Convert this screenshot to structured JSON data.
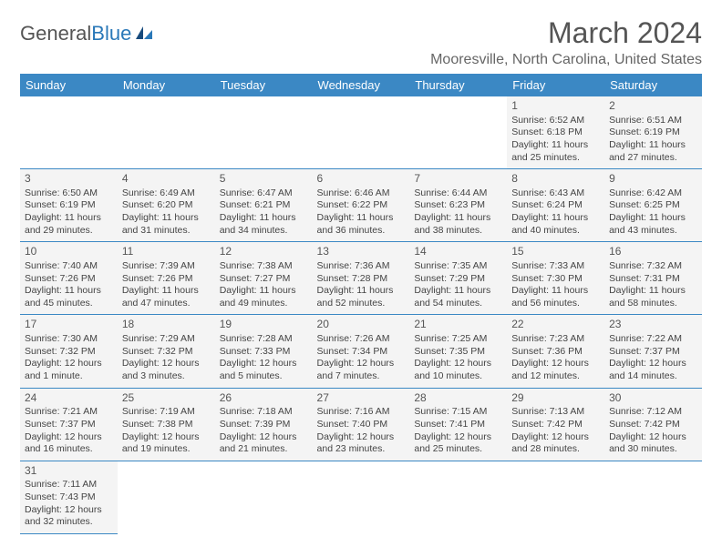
{
  "logo": {
    "text1": "General",
    "text2": "Blue"
  },
  "title": "March 2024",
  "location": "Mooresville, North Carolina, United States",
  "colors": {
    "header_bg": "#3b88c4",
    "header_text": "#ffffff",
    "cell_bg": "#f4f4f4",
    "border": "#3b88c4",
    "title_color": "#555555",
    "body_text": "#444444"
  },
  "day_headers": [
    "Sunday",
    "Monday",
    "Tuesday",
    "Wednesday",
    "Thursday",
    "Friday",
    "Saturday"
  ],
  "weeks": [
    [
      null,
      null,
      null,
      null,
      null,
      {
        "n": "1",
        "sr": "Sunrise: 6:52 AM",
        "ss": "Sunset: 6:18 PM",
        "d1": "Daylight: 11 hours",
        "d2": "and 25 minutes."
      },
      {
        "n": "2",
        "sr": "Sunrise: 6:51 AM",
        "ss": "Sunset: 6:19 PM",
        "d1": "Daylight: 11 hours",
        "d2": "and 27 minutes."
      }
    ],
    [
      {
        "n": "3",
        "sr": "Sunrise: 6:50 AM",
        "ss": "Sunset: 6:19 PM",
        "d1": "Daylight: 11 hours",
        "d2": "and 29 minutes."
      },
      {
        "n": "4",
        "sr": "Sunrise: 6:49 AM",
        "ss": "Sunset: 6:20 PM",
        "d1": "Daylight: 11 hours",
        "d2": "and 31 minutes."
      },
      {
        "n": "5",
        "sr": "Sunrise: 6:47 AM",
        "ss": "Sunset: 6:21 PM",
        "d1": "Daylight: 11 hours",
        "d2": "and 34 minutes."
      },
      {
        "n": "6",
        "sr": "Sunrise: 6:46 AM",
        "ss": "Sunset: 6:22 PM",
        "d1": "Daylight: 11 hours",
        "d2": "and 36 minutes."
      },
      {
        "n": "7",
        "sr": "Sunrise: 6:44 AM",
        "ss": "Sunset: 6:23 PM",
        "d1": "Daylight: 11 hours",
        "d2": "and 38 minutes."
      },
      {
        "n": "8",
        "sr": "Sunrise: 6:43 AM",
        "ss": "Sunset: 6:24 PM",
        "d1": "Daylight: 11 hours",
        "d2": "and 40 minutes."
      },
      {
        "n": "9",
        "sr": "Sunrise: 6:42 AM",
        "ss": "Sunset: 6:25 PM",
        "d1": "Daylight: 11 hours",
        "d2": "and 43 minutes."
      }
    ],
    [
      {
        "n": "10",
        "sr": "Sunrise: 7:40 AM",
        "ss": "Sunset: 7:26 PM",
        "d1": "Daylight: 11 hours",
        "d2": "and 45 minutes."
      },
      {
        "n": "11",
        "sr": "Sunrise: 7:39 AM",
        "ss": "Sunset: 7:26 PM",
        "d1": "Daylight: 11 hours",
        "d2": "and 47 minutes."
      },
      {
        "n": "12",
        "sr": "Sunrise: 7:38 AM",
        "ss": "Sunset: 7:27 PM",
        "d1": "Daylight: 11 hours",
        "d2": "and 49 minutes."
      },
      {
        "n": "13",
        "sr": "Sunrise: 7:36 AM",
        "ss": "Sunset: 7:28 PM",
        "d1": "Daylight: 11 hours",
        "d2": "and 52 minutes."
      },
      {
        "n": "14",
        "sr": "Sunrise: 7:35 AM",
        "ss": "Sunset: 7:29 PM",
        "d1": "Daylight: 11 hours",
        "d2": "and 54 minutes."
      },
      {
        "n": "15",
        "sr": "Sunrise: 7:33 AM",
        "ss": "Sunset: 7:30 PM",
        "d1": "Daylight: 11 hours",
        "d2": "and 56 minutes."
      },
      {
        "n": "16",
        "sr": "Sunrise: 7:32 AM",
        "ss": "Sunset: 7:31 PM",
        "d1": "Daylight: 11 hours",
        "d2": "and 58 minutes."
      }
    ],
    [
      {
        "n": "17",
        "sr": "Sunrise: 7:30 AM",
        "ss": "Sunset: 7:32 PM",
        "d1": "Daylight: 12 hours",
        "d2": "and 1 minute."
      },
      {
        "n": "18",
        "sr": "Sunrise: 7:29 AM",
        "ss": "Sunset: 7:32 PM",
        "d1": "Daylight: 12 hours",
        "d2": "and 3 minutes."
      },
      {
        "n": "19",
        "sr": "Sunrise: 7:28 AM",
        "ss": "Sunset: 7:33 PM",
        "d1": "Daylight: 12 hours",
        "d2": "and 5 minutes."
      },
      {
        "n": "20",
        "sr": "Sunrise: 7:26 AM",
        "ss": "Sunset: 7:34 PM",
        "d1": "Daylight: 12 hours",
        "d2": "and 7 minutes."
      },
      {
        "n": "21",
        "sr": "Sunrise: 7:25 AM",
        "ss": "Sunset: 7:35 PM",
        "d1": "Daylight: 12 hours",
        "d2": "and 10 minutes."
      },
      {
        "n": "22",
        "sr": "Sunrise: 7:23 AM",
        "ss": "Sunset: 7:36 PM",
        "d1": "Daylight: 12 hours",
        "d2": "and 12 minutes."
      },
      {
        "n": "23",
        "sr": "Sunrise: 7:22 AM",
        "ss": "Sunset: 7:37 PM",
        "d1": "Daylight: 12 hours",
        "d2": "and 14 minutes."
      }
    ],
    [
      {
        "n": "24",
        "sr": "Sunrise: 7:21 AM",
        "ss": "Sunset: 7:37 PM",
        "d1": "Daylight: 12 hours",
        "d2": "and 16 minutes."
      },
      {
        "n": "25",
        "sr": "Sunrise: 7:19 AM",
        "ss": "Sunset: 7:38 PM",
        "d1": "Daylight: 12 hours",
        "d2": "and 19 minutes."
      },
      {
        "n": "26",
        "sr": "Sunrise: 7:18 AM",
        "ss": "Sunset: 7:39 PM",
        "d1": "Daylight: 12 hours",
        "d2": "and 21 minutes."
      },
      {
        "n": "27",
        "sr": "Sunrise: 7:16 AM",
        "ss": "Sunset: 7:40 PM",
        "d1": "Daylight: 12 hours",
        "d2": "and 23 minutes."
      },
      {
        "n": "28",
        "sr": "Sunrise: 7:15 AM",
        "ss": "Sunset: 7:41 PM",
        "d1": "Daylight: 12 hours",
        "d2": "and 25 minutes."
      },
      {
        "n": "29",
        "sr": "Sunrise: 7:13 AM",
        "ss": "Sunset: 7:42 PM",
        "d1": "Daylight: 12 hours",
        "d2": "and 28 minutes."
      },
      {
        "n": "30",
        "sr": "Sunrise: 7:12 AM",
        "ss": "Sunset: 7:42 PM",
        "d1": "Daylight: 12 hours",
        "d2": "and 30 minutes."
      }
    ],
    [
      {
        "n": "31",
        "sr": "Sunrise: 7:11 AM",
        "ss": "Sunset: 7:43 PM",
        "d1": "Daylight: 12 hours",
        "d2": "and 32 minutes."
      },
      null,
      null,
      null,
      null,
      null,
      null
    ]
  ]
}
